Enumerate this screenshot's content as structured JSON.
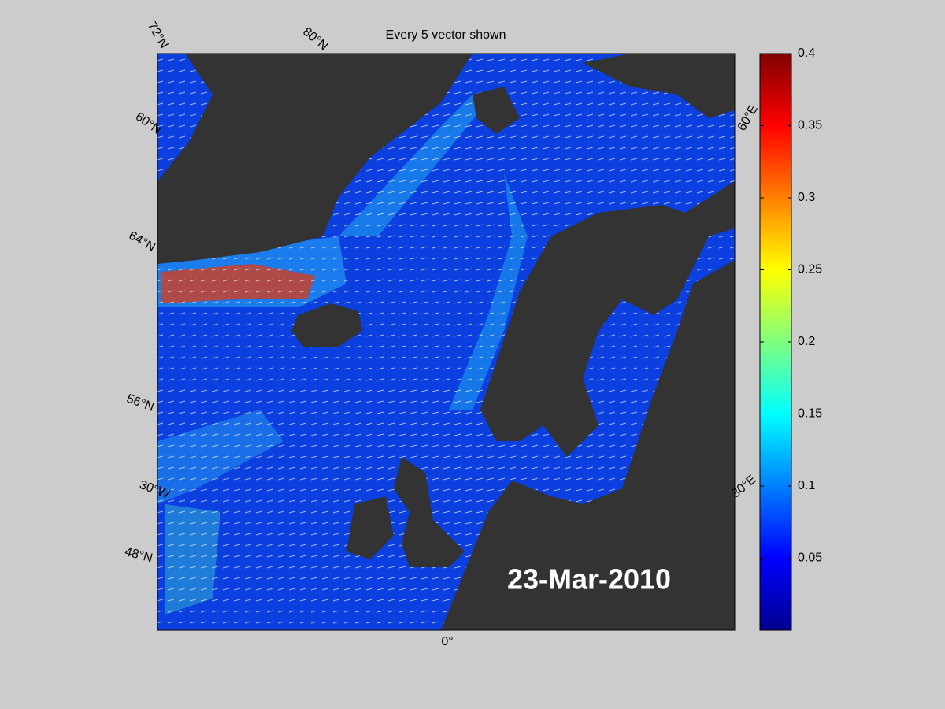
{
  "title": "Every 5 vector shown",
  "date": "23-Mar-2010",
  "graticule_labels": [
    "72°N",
    "80°N",
    "60°N",
    "64°N",
    "56°N",
    "30°W",
    "48°N",
    "0°",
    "30°E",
    "60°E"
  ],
  "colorbar": {
    "ylim": [
      0,
      0.4
    ],
    "ticks": [
      0.05,
      0.1,
      0.15,
      0.2,
      0.25,
      0.3,
      0.35,
      0.4
    ]
  }
}
